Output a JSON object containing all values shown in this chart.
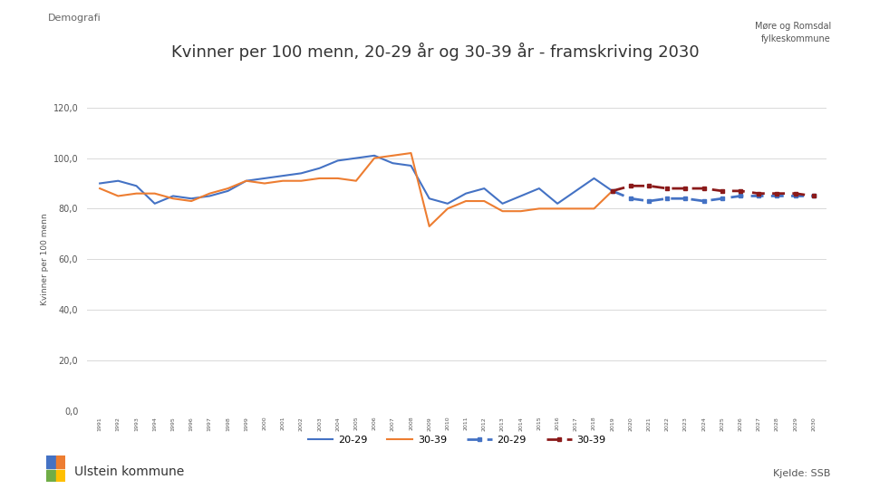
{
  "title1": "Kvinner per ",
  "title_bold": "100",
  "title2": " menn, 20-29 år og 30-39 år - framskriving 2030",
  "ylabel": "Kvinner per 100 menn",
  "ylim": [
    0,
    120
  ],
  "yticks": [
    0,
    20,
    40,
    60,
    80,
    100,
    120
  ],
  "ytick_labels": [
    "0,0",
    "20,0",
    "40,0",
    "60,0",
    "80,0",
    "100,0",
    "120,0"
  ],
  "demografi_label": "Demografi",
  "source_label": "Kjelde: SSB",
  "municipality_label": "Ulstein kommune",
  "years_hist": [
    1991,
    1992,
    1993,
    1994,
    1995,
    1996,
    1997,
    1998,
    1999,
    2000,
    2001,
    2002,
    2003,
    2004,
    2005,
    2006,
    2007,
    2008,
    2009,
    2010,
    2011,
    2012,
    2013,
    2014,
    2015,
    2016,
    2017,
    2018,
    2019
  ],
  "years_proj": [
    2019,
    2020,
    2021,
    2022,
    2023,
    2024,
    2025,
    2026,
    2027,
    2028,
    2029,
    2030
  ],
  "hist_2029": [
    90,
    91,
    89,
    82,
    85,
    84,
    85,
    87,
    91,
    92,
    93,
    94,
    96,
    99,
    100,
    101,
    98,
    97,
    84,
    82,
    86,
    88,
    82,
    85,
    88,
    82,
    87,
    92,
    87
  ],
  "hist_3039": [
    88,
    85,
    86,
    86,
    84,
    83,
    86,
    88,
    91,
    90,
    91,
    91,
    92,
    92,
    91,
    100,
    101,
    102,
    73,
    80,
    83,
    83,
    79,
    79,
    80,
    80,
    80,
    80,
    87
  ],
  "proj_2029": [
    87,
    84,
    83,
    84,
    84,
    83,
    84,
    85,
    85,
    85,
    85,
    85
  ],
  "proj_3039": [
    87,
    89,
    89,
    88,
    88,
    88,
    87,
    87,
    86,
    86,
    86,
    85
  ],
  "color_blue": "#4472C4",
  "color_orange": "#ED7D31",
  "color_proj_blue": "#4472C4",
  "color_proj_red": "#8B1A1A",
  "background_color": "#FFFFFF",
  "grid_color": "#D9D9D9",
  "icon_colors": [
    "#4472C4",
    "#ED7D31",
    "#70AD47",
    "#FFC000"
  ],
  "legend_labels_solid": [
    "20-29",
    "30-39"
  ],
  "legend_labels_dashed": [
    "20-29",
    "30-39"
  ]
}
